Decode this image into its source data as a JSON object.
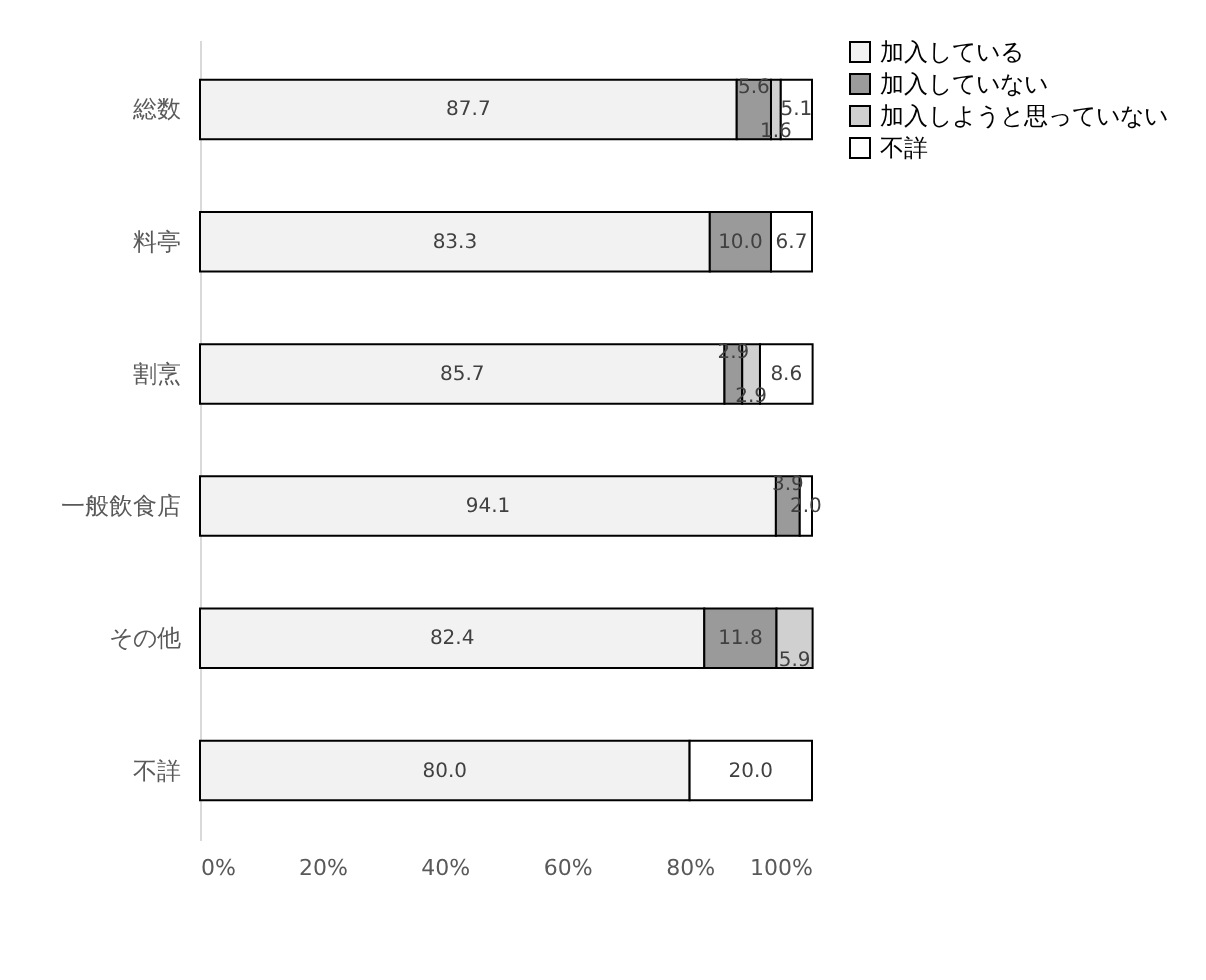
{
  "chart_data": {
    "type": "bar",
    "orientation": "horizontal",
    "stacked": true,
    "legend": "right",
    "grid": false,
    "categories": [
      "総数",
      "料亭",
      "割烹",
      "一般飲食店",
      "その他",
      "不詳"
    ],
    "xlim": [
      0,
      100
    ],
    "xticks": [
      {
        "value": 0,
        "label": "0%"
      },
      {
        "value": 20,
        "label": "20%"
      },
      {
        "value": 40,
        "label": "40%"
      },
      {
        "value": 60,
        "label": "60%"
      },
      {
        "value": 80,
        "label": "80%"
      },
      {
        "value": 100,
        "label": "100%"
      }
    ],
    "series": [
      {
        "name": "加入している",
        "color": "#f2f2f2",
        "values": [
          87.7,
          83.3,
          85.7,
          94.1,
          82.4,
          80.0
        ],
        "value_labels": [
          "87.7",
          "83.3",
          "85.7",
          "94.1",
          "82.4",
          "80.0"
        ]
      },
      {
        "name": "加入していない",
        "color": "#9a9a9a",
        "values": [
          5.6,
          10.0,
          2.9,
          3.9,
          11.8,
          null
        ],
        "value_labels": [
          "5.6",
          "10.0",
          "2.9",
          "3.9",
          "11.8",
          null
        ]
      },
      {
        "name": "加入しようと思っていない",
        "color": "#d0d0d0",
        "values": [
          1.6,
          null,
          2.9,
          null,
          5.9,
          null
        ],
        "value_labels": [
          "1.6",
          null,
          "2.9",
          null,
          "5.9",
          null
        ]
      },
      {
        "name": "不詳",
        "color": "#ffffff",
        "values": [
          5.1,
          6.7,
          8.6,
          2.0,
          null,
          20.0
        ],
        "value_labels": [
          "5.1",
          "6.7",
          "8.6",
          "2.0",
          null,
          "20.0"
        ]
      }
    ]
  }
}
